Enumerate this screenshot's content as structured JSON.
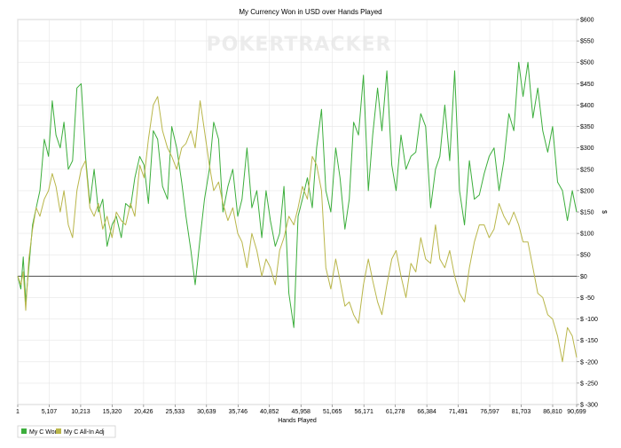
{
  "watermark": "POKERTRACKER",
  "chart_data": {
    "type": "line",
    "title": "My Currency Won in USD over Hands Played",
    "xlabel": "Hands Played",
    "ylabel": "$",
    "xlim": [
      1,
      90699
    ],
    "ylim": [
      -300,
      600
    ],
    "x_ticks": [
      1,
      5107,
      10213,
      15320,
      20426,
      25533,
      30639,
      35746,
      40852,
      45958,
      51065,
      56171,
      61278,
      66384,
      71491,
      76597,
      81703,
      86810,
      90699
    ],
    "x_tick_labels": [
      "1",
      "5,107",
      "10,213",
      "15,320",
      "20,426",
      "25,533",
      "30,639",
      "35,746",
      "40,852",
      "45,958",
      "51,065",
      "56,171",
      "61,278",
      "66,384",
      "71,491",
      "76,597",
      "81,703",
      "86,810",
      "90,699"
    ],
    "y_ticks": [
      600,
      550,
      500,
      450,
      400,
      350,
      300,
      250,
      200,
      150,
      100,
      50,
      0,
      -50,
      -100,
      -150,
      -200,
      -250,
      -300
    ],
    "y_tick_labels": [
      "$600",
      "$550",
      "$500",
      "$450",
      "$400",
      "$350",
      "$300",
      "$250",
      "$200",
      "$150",
      "$100",
      "$50",
      "$0",
      "$ -50",
      "$ -100",
      "$ -150",
      "$ -200",
      "$ -250",
      "$ -300"
    ],
    "grid": true,
    "legend_position": "bottom-left",
    "series": [
      {
        "name": "My C Won",
        "color": "#3cae3c",
        "x": [
          1,
          500,
          900,
          1300,
          1800,
          2400,
          3000,
          3600,
          4300,
          5000,
          5600,
          6200,
          6900,
          7500,
          8200,
          8900,
          9600,
          10300,
          11000,
          11700,
          12400,
          13100,
          13800,
          14500,
          15300,
          16000,
          16800,
          17500,
          18300,
          19000,
          19800,
          20500,
          21200,
          22000,
          22700,
          23500,
          24300,
          25000,
          25800,
          26600,
          27300,
          28100,
          28800,
          29600,
          30300,
          31100,
          31800,
          32600,
          33300,
          34100,
          34900,
          35700,
          36400,
          37200,
          38000,
          38800,
          39600,
          40300,
          41000,
          41800,
          42500,
          43200,
          44000,
          44800,
          45500,
          46200,
          47000,
          47800,
          48500,
          49300,
          50000,
          50800,
          51600,
          52300,
          53100,
          53800,
          54500,
          55300,
          56100,
          56900,
          57600,
          58400,
          59100,
          59900,
          60700,
          61400,
          62200,
          63000,
          63800,
          64600,
          65400,
          66200,
          67000,
          67800,
          68500,
          69300,
          70100,
          70900,
          71700,
          72500,
          73300,
          74100,
          74900,
          75700,
          76500,
          77300,
          78100,
          78900,
          79700,
          80500,
          81300,
          82000,
          82800,
          83600,
          84400,
          85200,
          86000,
          86800,
          87600,
          88400,
          89200,
          90000,
          90699
        ],
        "y": [
          0,
          -30,
          45,
          -60,
          20,
          120,
          160,
          200,
          320,
          280,
          410,
          330,
          300,
          360,
          250,
          270,
          440,
          450,
          280,
          170,
          250,
          150,
          180,
          70,
          120,
          140,
          90,
          170,
          160,
          230,
          280,
          260,
          170,
          340,
          320,
          210,
          180,
          350,
          300,
          220,
          140,
          60,
          -20,
          90,
          180,
          250,
          360,
          320,
          150,
          210,
          250,
          140,
          180,
          300,
          160,
          200,
          90,
          200,
          130,
          70,
          100,
          210,
          -40,
          -120,
          140,
          180,
          230,
          160,
          300,
          390,
          200,
          150,
          300,
          230,
          110,
          180,
          360,
          330,
          470,
          200,
          330,
          440,
          340,
          480,
          260,
          200,
          330,
          250,
          280,
          290,
          380,
          350,
          160,
          250,
          280,
          400,
          270,
          480,
          200,
          120,
          270,
          180,
          190,
          240,
          280,
          300,
          200,
          270,
          380,
          340,
          500,
          420,
          500,
          370,
          440,
          340,
          290,
          350,
          220,
          200,
          130,
          200,
          150
        ]
      },
      {
        "name": "My C All-In Adj",
        "color": "#b9b64a",
        "x": [
          1,
          500,
          900,
          1300,
          1800,
          2400,
          3000,
          3600,
          4300,
          5000,
          5600,
          6200,
          6900,
          7500,
          8200,
          8900,
          9600,
          10300,
          11000,
          11700,
          12400,
          13100,
          13800,
          14500,
          15300,
          16000,
          16800,
          17500,
          18300,
          19000,
          19800,
          20500,
          21200,
          22000,
          22700,
          23500,
          24300,
          25000,
          25800,
          26600,
          27300,
          28100,
          28800,
          29600,
          30300,
          31100,
          31800,
          32600,
          33300,
          34100,
          34900,
          35700,
          36400,
          37200,
          38000,
          38800,
          39600,
          40300,
          41000,
          41800,
          42500,
          43200,
          44000,
          44800,
          45500,
          46200,
          47000,
          47800,
          48500,
          49300,
          50000,
          50800,
          51600,
          52300,
          53100,
          53800,
          54500,
          55300,
          56100,
          56900,
          57600,
          58400,
          59100,
          59900,
          60700,
          61400,
          62200,
          63000,
          63800,
          64600,
          65400,
          66200,
          67000,
          67800,
          68500,
          69300,
          70100,
          70900,
          71700,
          72500,
          73300,
          74100,
          74900,
          75700,
          76500,
          77300,
          78100,
          78900,
          79700,
          80500,
          81300,
          82000,
          82800,
          83600,
          84400,
          85200,
          86000,
          86800,
          87600,
          88400,
          89200,
          90000,
          90699
        ],
        "y": [
          0,
          -20,
          10,
          -80,
          40,
          110,
          160,
          140,
          180,
          200,
          240,
          210,
          150,
          200,
          120,
          90,
          200,
          250,
          270,
          160,
          140,
          170,
          110,
          140,
          90,
          150,
          130,
          120,
          170,
          140,
          260,
          230,
          320,
          400,
          420,
          340,
          300,
          280,
          250,
          300,
          310,
          340,
          300,
          410,
          340,
          260,
          200,
          220,
          170,
          130,
          160,
          100,
          80,
          20,
          100,
          60,
          0,
          40,
          20,
          -20,
          60,
          90,
          140,
          120,
          160,
          210,
          180,
          280,
          260,
          200,
          20,
          -30,
          40,
          -10,
          -70,
          -60,
          -90,
          -110,
          -20,
          40,
          -10,
          -60,
          -90,
          -20,
          40,
          60,
          0,
          -50,
          30,
          10,
          90,
          40,
          30,
          120,
          40,
          20,
          60,
          0,
          -40,
          -60,
          20,
          80,
          120,
          120,
          90,
          110,
          170,
          140,
          120,
          150,
          120,
          80,
          80,
          20,
          -40,
          -50,
          -90,
          -100,
          -140,
          -200,
          -120,
          -140,
          -190
        ]
      }
    ]
  }
}
